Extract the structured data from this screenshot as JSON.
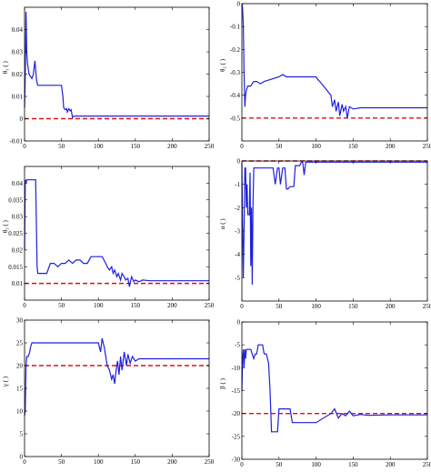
{
  "colors": {
    "series": "#1f1fe0",
    "reference": "#e01010",
    "axes": "#000000"
  },
  "chart_data": [
    {
      "type": "line",
      "ylabel": "θ₁ (  )",
      "xlim": [
        0,
        250
      ],
      "ylim": [
        -0.01,
        0.05
      ],
      "xticks": [
        "0",
        "50",
        "100",
        "150",
        "200",
        "250"
      ],
      "yticks": [
        "-0.01",
        "0",
        "0.01",
        "0.02",
        "0.03",
        "0.04"
      ],
      "reference": 0,
      "series": [
        {
          "x": [
            0,
            1,
            2,
            3,
            4,
            6,
            8,
            10,
            12,
            14,
            15,
            16,
            17,
            18,
            20,
            25,
            30,
            40,
            50,
            52,
            53,
            55,
            57,
            58,
            60,
            62,
            63,
            65,
            66,
            68,
            70,
            90,
            120,
            150,
            200,
            250
          ],
          "y": [
            0.005,
            0.02,
            0.048,
            0.03,
            0.025,
            0.02,
            0.019,
            0.018,
            0.02,
            0.026,
            0.022,
            0.018,
            0.016,
            0.015,
            0.015,
            0.015,
            0.015,
            0.015,
            0.015,
            0.01,
            0.005,
            0.004,
            0.0045,
            0.003,
            0.0045,
            0.0035,
            0.004,
            0.0005,
            0.001,
            0.0012,
            0.0012,
            0.0012,
            0.0012,
            0.0012,
            0.0012,
            0.0012
          ]
        }
      ]
    },
    {
      "type": "line",
      "ylabel": "θ₂ (  )",
      "xlim": [
        0,
        250
      ],
      "ylim": [
        -0.6,
        0
      ],
      "xticks": [
        "0",
        "50",
        "100",
        "150",
        "200",
        "250"
      ],
      "yticks": [
        "-0.5",
        "-0.4",
        "-0.3",
        "-0.2",
        "-0.1",
        "0"
      ],
      "reference": -0.5,
      "series": [
        {
          "x": [
            0,
            1,
            2,
            3,
            4,
            5,
            6,
            7,
            8,
            10,
            12,
            14,
            16,
            18,
            20,
            25,
            30,
            40,
            50,
            55,
            60,
            70,
            80,
            90,
            100,
            102,
            105,
            110,
            115,
            120,
            122,
            125,
            127,
            130,
            132,
            135,
            137,
            140,
            142,
            145,
            150,
            160,
            170,
            200,
            250
          ],
          "y": [
            0,
            -0.02,
            -0.1,
            -0.3,
            -0.45,
            -0.4,
            -0.38,
            -0.37,
            -0.36,
            -0.36,
            -0.36,
            -0.35,
            -0.34,
            -0.34,
            -0.34,
            -0.35,
            -0.34,
            -0.33,
            -0.32,
            -0.31,
            -0.32,
            -0.32,
            -0.32,
            -0.32,
            -0.32,
            -0.33,
            -0.34,
            -0.36,
            -0.38,
            -0.4,
            -0.45,
            -0.42,
            -0.47,
            -0.43,
            -0.49,
            -0.44,
            -0.47,
            -0.45,
            -0.5,
            -0.45,
            -0.46,
            -0.455,
            -0.455,
            -0.455,
            -0.455
          ]
        }
      ]
    },
    {
      "type": "line",
      "ylabel": "θ₃ (  )",
      "xlim": [
        0,
        250
      ],
      "ylim": [
        0.005,
        0.045
      ],
      "xticks": [
        "0",
        "50",
        "100",
        "150",
        "200",
        "250"
      ],
      "yticks": [
        "0.01",
        "0.015",
        "0.02",
        "0.025",
        "0.03",
        "0.035",
        "0.04"
      ],
      "reference": 0.01,
      "series": [
        {
          "x": [
            0,
            1,
            2,
            3,
            4,
            5,
            6,
            8,
            10,
            12,
            15,
            17,
            18,
            20,
            25,
            30,
            35,
            40,
            45,
            50,
            55,
            60,
            65,
            70,
            75,
            80,
            85,
            90,
            100,
            105,
            110,
            112,
            115,
            118,
            120,
            122,
            125,
            127,
            130,
            132,
            135,
            137,
            140,
            142,
            145,
            148,
            150,
            155,
            160,
            170,
            180,
            200,
            250
          ],
          "y": [
            0.02,
            0.041,
            0.04,
            0.041,
            0.041,
            0.041,
            0.041,
            0.041,
            0.041,
            0.041,
            0.041,
            0.015,
            0.013,
            0.013,
            0.013,
            0.013,
            0.016,
            0.016,
            0.015,
            0.016,
            0.016,
            0.017,
            0.016,
            0.017,
            0.017,
            0.016,
            0.016,
            0.018,
            0.018,
            0.018,
            0.016,
            0.015,
            0.014,
            0.015,
            0.013,
            0.014,
            0.012,
            0.013,
            0.011,
            0.013,
            0.012,
            0.011,
            0.0115,
            0.009,
            0.012,
            0.0105,
            0.011,
            0.0105,
            0.011,
            0.0108,
            0.0108,
            0.0108,
            0.0108
          ]
        }
      ]
    },
    {
      "type": "line",
      "ylabel": "α (  )",
      "xlim": [
        0,
        250
      ],
      "ylim": [
        -6,
        0
      ],
      "xticks": [
        "0",
        "50",
        "100",
        "150",
        "200",
        "250"
      ],
      "yticks": [
        "-5",
        "-4",
        "-3",
        "-2",
        "-1",
        "0"
      ],
      "reference": 0,
      "series": [
        {
          "x": [
            0,
            1,
            2,
            3,
            4,
            5,
            6,
            7,
            8,
            10,
            11,
            12,
            13,
            14,
            15,
            16,
            17,
            18,
            20,
            22,
            25,
            30,
            32,
            35,
            38,
            40,
            42,
            45,
            48,
            50,
            52,
            55,
            58,
            60,
            62,
            65,
            68,
            70,
            72,
            75,
            78,
            80,
            82,
            84,
            86,
            88,
            90,
            100,
            120,
            150,
            200,
            250
          ],
          "y": [
            -0.1,
            -2.8,
            -5,
            -3,
            -0.3,
            -0.3,
            -2,
            -1,
            -2.3,
            -2.3,
            -0.5,
            -4.5,
            -2,
            -5.3,
            -2,
            -0.3,
            -0.3,
            -0.3,
            -0.3,
            -0.3,
            -0.3,
            -0.3,
            -0.3,
            -0.3,
            -0.3,
            -0.3,
            -0.3,
            -1,
            -0.3,
            -0.3,
            -1,
            -0.3,
            -0.3,
            -1.2,
            -1.2,
            -1.1,
            -1.1,
            -1.1,
            -0.2,
            -0.2,
            -0.2,
            -0.05,
            -0.05,
            -0.6,
            -0.05,
            -0.05,
            -0.05,
            -0.05,
            -0.05,
            -0.05,
            -0.05,
            -0.05
          ]
        }
      ]
    },
    {
      "type": "line",
      "ylabel": "γ (  )",
      "xlim": [
        0,
        250
      ],
      "ylim": [
        0,
        30
      ],
      "xticks": [
        "0",
        "50",
        "100",
        "150",
        "200",
        "250"
      ],
      "yticks": [
        "0",
        "5",
        "10",
        "15",
        "20",
        "25",
        "30"
      ],
      "reference": 20,
      "series": [
        {
          "x": [
            0,
            1,
            2,
            3,
            5,
            7,
            8,
            10,
            12,
            15,
            20,
            30,
            50,
            80,
            100,
            103,
            105,
            108,
            110,
            112,
            115,
            118,
            120,
            122,
            124,
            126,
            128,
            130,
            132,
            135,
            138,
            140,
            143,
            146,
            150,
            155,
            160,
            170,
            180,
            200,
            250
          ],
          "y": [
            9,
            10,
            20,
            22,
            22,
            23,
            24,
            25,
            25,
            25,
            25,
            25,
            25,
            25,
            25,
            23,
            26,
            24,
            22,
            20,
            19,
            17,
            18,
            16,
            19,
            21,
            18,
            22,
            19,
            23,
            20,
            22.5,
            20.5,
            22,
            21,
            21.5,
            21.5,
            21.5,
            21.5,
            21.5,
            21.5
          ]
        }
      ]
    },
    {
      "type": "line",
      "ylabel": "β (  )",
      "xlim": [
        0,
        250
      ],
      "ylim": [
        -30,
        0
      ],
      "xticks": [
        "0",
        "50",
        "100",
        "150",
        "200",
        "250"
      ],
      "yticks": [
        "-30",
        "-25",
        "-20",
        "-15",
        "-10",
        "-5",
        "0"
      ],
      "reference": -20,
      "series": [
        {
          "x": [
            0,
            1,
            2,
            3,
            4,
            5,
            6,
            8,
            10,
            12,
            14,
            16,
            18,
            20,
            22,
            25,
            28,
            30,
            33,
            36,
            38,
            40,
            42,
            45,
            48,
            50,
            55,
            60,
            65,
            68,
            70,
            75,
            80,
            85,
            100,
            120,
            125,
            130,
            135,
            140,
            145,
            150,
            160,
            170,
            200,
            250
          ],
          "y": [
            -15,
            -8,
            -6,
            -10,
            -6,
            -8,
            -6,
            -6,
            -6,
            -6,
            -7,
            -8,
            -7,
            -7,
            -5,
            -5,
            -5,
            -7,
            -7,
            -9,
            -15,
            -24,
            -24,
            -24,
            -24,
            -19,
            -19,
            -19,
            -19,
            -22,
            -22,
            -22,
            -22,
            -22,
            -22,
            -20,
            -19,
            -21,
            -20,
            -20.5,
            -19.5,
            -20.5,
            -20.2,
            -20.4,
            -20.3,
            -20.3
          ]
        }
      ]
    }
  ]
}
